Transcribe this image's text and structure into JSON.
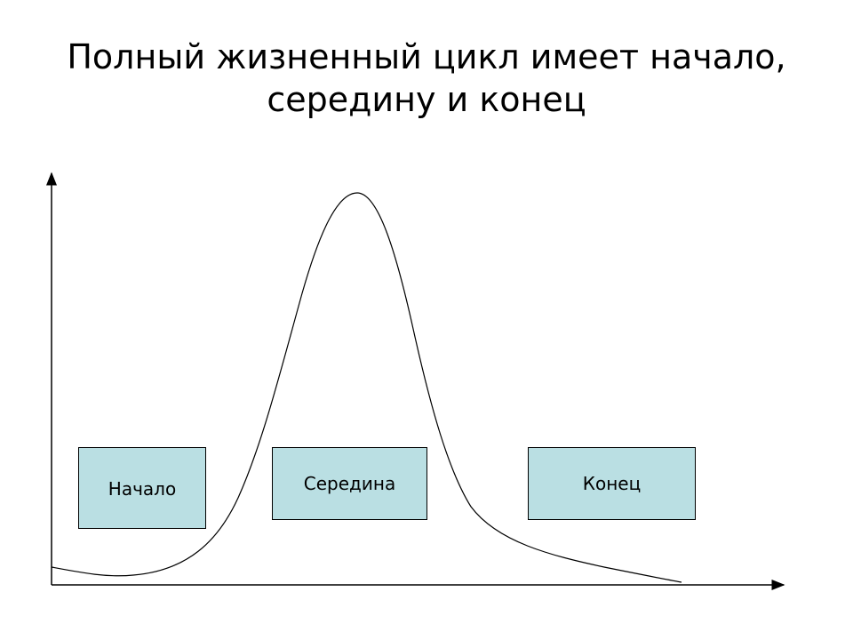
{
  "title_line1": "Полный жизненный цикл имеет начало,",
  "title_line2": "середину и конец",
  "boxes": [
    {
      "label": "Начало"
    },
    {
      "label": "Середина"
    },
    {
      "label": "Конец"
    }
  ],
  "colors": {
    "box_fill": "#badfe3",
    "line": "#000000"
  }
}
